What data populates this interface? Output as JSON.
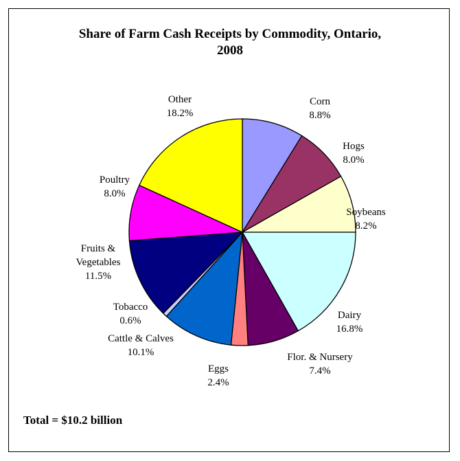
{
  "chart_data": {
    "type": "pie",
    "title_line1": "Share of Farm Cash Receipts by Commodity, Ontario,",
    "title_line2": "2008",
    "unit": "%",
    "slices": [
      {
        "name": "Corn",
        "value": 8.8,
        "label": "8.8%",
        "color": "#9999ff"
      },
      {
        "name": "Hogs",
        "value": 8.0,
        "label": "8.0%",
        "color": "#993366"
      },
      {
        "name": "Soybeans",
        "value": 8.2,
        "label": "8.2%",
        "color": "#ffffcc"
      },
      {
        "name": "Dairy",
        "value": 16.8,
        "label": "16.8%",
        "color": "#ccffff"
      },
      {
        "name": "Flor. & Nursery",
        "value": 7.4,
        "label": "7.4%",
        "color": "#660066"
      },
      {
        "name": "Eggs",
        "value": 2.4,
        "label": "2.4%",
        "color": "#ff8080"
      },
      {
        "name": "Cattle & Calves",
        "value": 10.1,
        "label": "10.1%",
        "color": "#0066cc"
      },
      {
        "name": "Tobacco",
        "value": 0.6,
        "label": "0.6%",
        "color": "#ccccff"
      },
      {
        "name": "Fruits & Vegetables",
        "name_lines": [
          "Fruits &",
          "Vegetables"
        ],
        "value": 11.5,
        "label": "11.5%",
        "color": "#000080"
      },
      {
        "name": "Poultry",
        "value": 8.0,
        "label": "8.0%",
        "color": "#ff00ff"
      },
      {
        "name": "Other",
        "value": 18.2,
        "label": "18.2%",
        "color": "#ffff00"
      }
    ],
    "total_text": "Total = $10.2 billion"
  }
}
